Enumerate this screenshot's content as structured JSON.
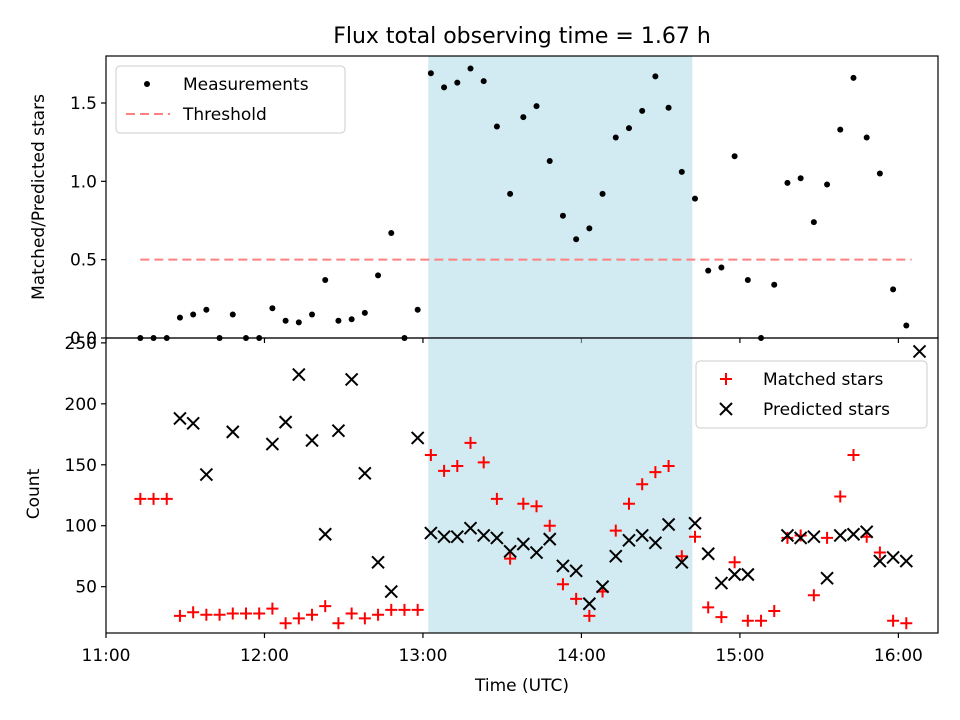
{
  "title": "Flux total observing time = 1.67 h",
  "colors": {
    "highlight": "#add8e6",
    "threshold": "#ff8080",
    "matched": "#ff0000",
    "predicted": "#000000",
    "measurement": "#000000"
  },
  "chart_data": [
    {
      "type": "scatter",
      "ylabel": "Matched/Predicted stars",
      "xlim": [
        "11:00",
        "16:15"
      ],
      "ylim": [
        0,
        1.8
      ],
      "yticks": [
        "0.0",
        "0.5",
        "1.0",
        "1.5"
      ],
      "ytick_values": [
        0,
        0.5,
        1.0,
        1.5
      ],
      "highlight_span": [
        "13:02",
        "14:42"
      ],
      "legend": {
        "position": "upper left",
        "entries": [
          "Measurements",
          "Threshold"
        ]
      },
      "threshold": {
        "name": "Threshold",
        "y": 0.5,
        "x": [
          "11:13",
          "16:05"
        ]
      },
      "series": [
        {
          "name": "Measurements",
          "points": [
            [
              "11:13",
              0.0
            ],
            [
              "11:18",
              0.0
            ],
            [
              "11:23",
              0.0
            ],
            [
              "11:28",
              0.13
            ],
            [
              "11:33",
              0.15
            ],
            [
              "11:38",
              0.18
            ],
            [
              "11:43",
              0.0
            ],
            [
              "11:48",
              0.15
            ],
            [
              "11:53",
              0.0
            ],
            [
              "11:58",
              0.0
            ],
            [
              "12:03",
              0.19
            ],
            [
              "12:08",
              0.11
            ],
            [
              "12:13",
              0.1
            ],
            [
              "12:18",
              0.15
            ],
            [
              "12:23",
              0.37
            ],
            [
              "12:28",
              0.11
            ],
            [
              "12:33",
              0.12
            ],
            [
              "12:38",
              0.16
            ],
            [
              "12:43",
              0.4
            ],
            [
              "12:48",
              0.67
            ],
            [
              "12:53",
              0.0
            ],
            [
              "12:58",
              0.18
            ],
            [
              "13:03",
              1.69
            ],
            [
              "13:08",
              1.6
            ],
            [
              "13:13",
              1.63
            ],
            [
              "13:18",
              1.72
            ],
            [
              "13:23",
              1.64
            ],
            [
              "13:28",
              1.35
            ],
            [
              "13:33",
              0.92
            ],
            [
              "13:38",
              1.41
            ],
            [
              "13:43",
              1.48
            ],
            [
              "13:48",
              1.13
            ],
            [
              "13:53",
              0.78
            ],
            [
              "13:58",
              0.63
            ],
            [
              "14:03",
              0.7
            ],
            [
              "14:08",
              0.92
            ],
            [
              "14:13",
              1.28
            ],
            [
              "14:18",
              1.34
            ],
            [
              "14:23",
              1.45
            ],
            [
              "14:28",
              1.67
            ],
            [
              "14:33",
              1.47
            ],
            [
              "14:38",
              1.06
            ],
            [
              "14:43",
              0.89
            ],
            [
              "14:48",
              0.43
            ],
            [
              "14:53",
              0.45
            ],
            [
              "14:58",
              1.16
            ],
            [
              "15:03",
              0.37
            ],
            [
              "15:08",
              0.0
            ],
            [
              "15:13",
              0.34
            ],
            [
              "15:18",
              0.99
            ],
            [
              "15:23",
              1.02
            ],
            [
              "15:28",
              0.74
            ],
            [
              "15:33",
              0.98
            ],
            [
              "15:38",
              1.33
            ],
            [
              "15:43",
              1.66
            ],
            [
              "15:48",
              1.28
            ],
            [
              "15:53",
              1.05
            ],
            [
              "15:58",
              0.31
            ],
            [
              "16:03",
              0.08
            ]
          ]
        }
      ]
    },
    {
      "type": "scatter",
      "xlabel": "Time (UTC)",
      "ylabel": "Count",
      "xlim": [
        "11:00",
        "16:15"
      ],
      "ylim": [
        12,
        254
      ],
      "xticks": [
        "11:00",
        "12:00",
        "13:00",
        "14:00",
        "15:00",
        "16:00"
      ],
      "yticks": [
        "50",
        "100",
        "150",
        "200",
        "250"
      ],
      "ytick_values": [
        50,
        100,
        150,
        200,
        250
      ],
      "highlight_span": [
        "13:02",
        "14:42"
      ],
      "legend": {
        "position": "upper right",
        "entries": [
          "Matched stars",
          "Predicted stars"
        ]
      },
      "series": [
        {
          "name": "Matched stars",
          "marker": "plus",
          "points": [
            [
              "11:13",
              122
            ],
            [
              "11:18",
              122
            ],
            [
              "11:23",
              122
            ],
            [
              "11:28",
              26
            ],
            [
              "11:33",
              29
            ],
            [
              "11:38",
              27
            ],
            [
              "11:43",
              27
            ],
            [
              "11:48",
              28
            ],
            [
              "11:53",
              28
            ],
            [
              "11:58",
              28
            ],
            [
              "12:03",
              32
            ],
            [
              "12:08",
              20
            ],
            [
              "12:13",
              24
            ],
            [
              "12:18",
              27
            ],
            [
              "12:23",
              34
            ],
            [
              "12:28",
              20
            ],
            [
              "12:33",
              28
            ],
            [
              "12:38",
              24
            ],
            [
              "12:43",
              27
            ],
            [
              "12:48",
              31
            ],
            [
              "12:53",
              31
            ],
            [
              "12:58",
              31
            ],
            [
              "13:03",
              158
            ],
            [
              "13:08",
              145
            ],
            [
              "13:13",
              149
            ],
            [
              "13:18",
              168
            ],
            [
              "13:23",
              152
            ],
            [
              "13:28",
              122
            ],
            [
              "13:33",
              73
            ],
            [
              "13:38",
              118
            ],
            [
              "13:43",
              116
            ],
            [
              "13:48",
              100
            ],
            [
              "13:53",
              52
            ],
            [
              "13:58",
              40
            ],
            [
              "14:03",
              26
            ],
            [
              "14:08",
              46
            ],
            [
              "14:13",
              96
            ],
            [
              "14:18",
              118
            ],
            [
              "14:23",
              134
            ],
            [
              "14:28",
              144
            ],
            [
              "14:33",
              149
            ],
            [
              "14:38",
              75
            ],
            [
              "14:43",
              91
            ],
            [
              "14:48",
              33
            ],
            [
              "14:53",
              25
            ],
            [
              "14:58",
              70
            ],
            [
              "15:03",
              22
            ],
            [
              "15:08",
              22
            ],
            [
              "15:13",
              30
            ],
            [
              "15:18",
              90
            ],
            [
              "15:23",
              92
            ],
            [
              "15:28",
              43
            ],
            [
              "15:33",
              90
            ],
            [
              "15:38",
              124
            ],
            [
              "15:43",
              158
            ],
            [
              "15:48",
              91
            ],
            [
              "15:53",
              78
            ],
            [
              "15:58",
              22
            ],
            [
              "16:03",
              20
            ]
          ]
        },
        {
          "name": "Predicted stars",
          "marker": "x",
          "points": [
            [
              "11:28",
              188
            ],
            [
              "11:33",
              184
            ],
            [
              "11:38",
              142
            ],
            [
              "11:48",
              177
            ],
            [
              "12:03",
              167
            ],
            [
              "12:08",
              185
            ],
            [
              "12:13",
              224
            ],
            [
              "12:18",
              170
            ],
            [
              "12:23",
              93
            ],
            [
              "12:28",
              178
            ],
            [
              "12:33",
              220
            ],
            [
              "12:38",
              143
            ],
            [
              "12:43",
              70
            ],
            [
              "12:48",
              46
            ],
            [
              "12:58",
              172
            ],
            [
              "13:03",
              94
            ],
            [
              "13:08",
              91
            ],
            [
              "13:13",
              91
            ],
            [
              "13:18",
              98
            ],
            [
              "13:23",
              92
            ],
            [
              "13:28",
              90
            ],
            [
              "13:33",
              79
            ],
            [
              "13:38",
              85
            ],
            [
              "13:43",
              78
            ],
            [
              "13:48",
              89
            ],
            [
              "13:53",
              67
            ],
            [
              "13:58",
              63
            ],
            [
              "14:03",
              36
            ],
            [
              "14:08",
              50
            ],
            [
              "14:13",
              75
            ],
            [
              "14:18",
              88
            ],
            [
              "14:23",
              92
            ],
            [
              "14:28",
              86
            ],
            [
              "14:33",
              101
            ],
            [
              "14:38",
              70
            ],
            [
              "14:43",
              102
            ],
            [
              "14:48",
              77
            ],
            [
              "14:53",
              53
            ],
            [
              "14:58",
              60
            ],
            [
              "15:03",
              60
            ],
            [
              "15:18",
              92
            ],
            [
              "15:23",
              90
            ],
            [
              "15:28",
              91
            ],
            [
              "15:33",
              57
            ],
            [
              "15:38",
              92
            ],
            [
              "15:43",
              93
            ],
            [
              "15:48",
              95
            ],
            [
              "15:53",
              71
            ],
            [
              "15:58",
              74
            ],
            [
              "16:03",
              71
            ],
            [
              "16:08",
              243
            ]
          ]
        }
      ]
    }
  ]
}
